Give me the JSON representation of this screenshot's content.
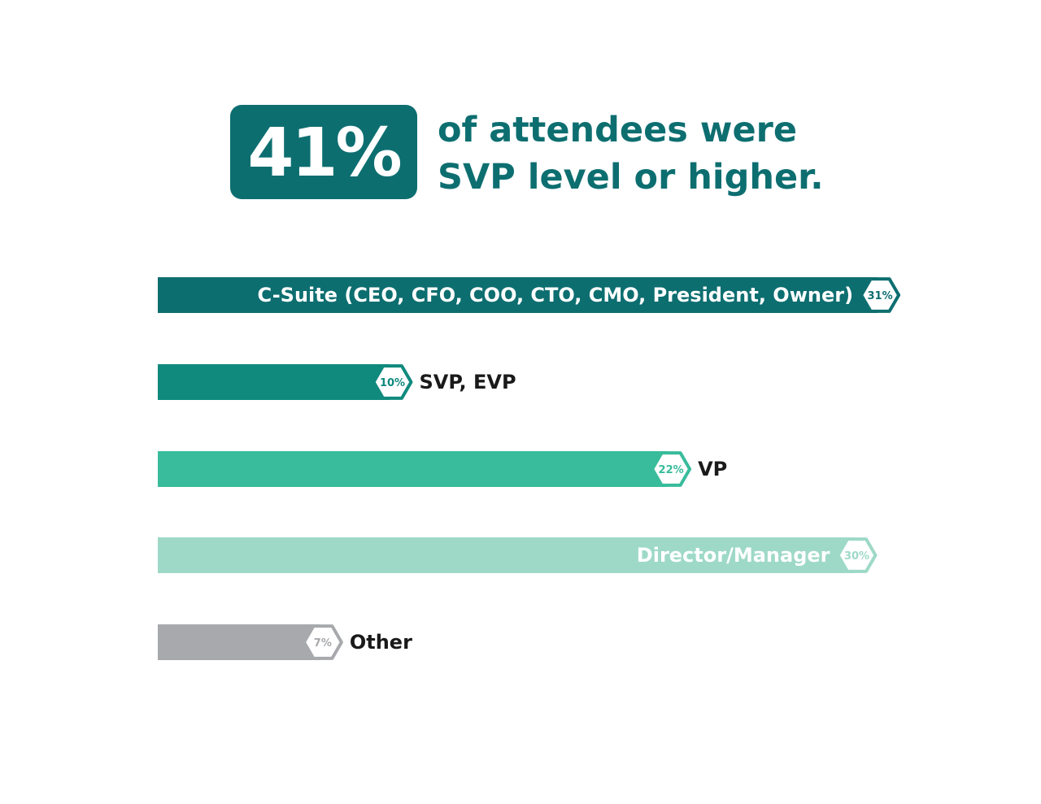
{
  "headline": {
    "big_stat": "41%",
    "line1": "of attendees were",
    "line2": "SVP level or higher."
  },
  "colors": {
    "dark_teal": "#0d6e70",
    "teal": "#0f8a7d",
    "green": "#38bc9b",
    "light_green": "#9ed9c7",
    "gray": "#a7a9ac",
    "label_dark": "#1a1a1a"
  },
  "chart_data": {
    "type": "bar",
    "orientation": "horizontal",
    "title": "41% of attendees were SVP level or higher.",
    "unit": "%",
    "categories": [
      "C-Suite (CEO, CFO, COO, CTO, CMO, President, Owner)",
      "SVP, EVP",
      "VP",
      "Director/Manager",
      "Other"
    ],
    "values": [
      31,
      10,
      22,
      30,
      7
    ],
    "value_labels": [
      "31%",
      "10%",
      "22%",
      "30%",
      "7%"
    ],
    "bar_colors": [
      "#0d6e70",
      "#0f8a7d",
      "#38bc9b",
      "#9ed9c7",
      "#a7a9ac"
    ],
    "label_placement": [
      "inside",
      "outside",
      "outside",
      "inside",
      "outside"
    ]
  }
}
